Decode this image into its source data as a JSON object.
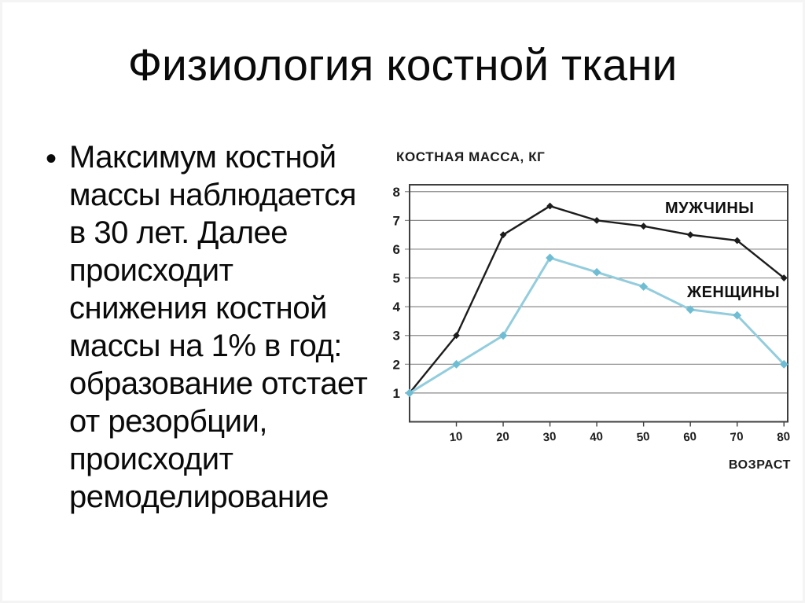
{
  "slide": {
    "title": "Физиология костной ткани",
    "bullet_char": "•",
    "bullet_text": "Максимум костной\nмассы наблюдается\nв 30 лет. Далее\nпроисходит\nснижения костной\nмассы на 1% в год:\nобразование отстает\nот резорбции,\nпроисходит\nремоделирование"
  },
  "chart_data": {
    "type": "line",
    "title": "КОСТНАЯ МАССА, КГ",
    "xlabel": "ВОЗРАСТ",
    "ylabel": "",
    "x": [
      0,
      10,
      20,
      30,
      40,
      50,
      60,
      70,
      80
    ],
    "x_ticks": [
      10,
      20,
      30,
      40,
      50,
      60,
      70,
      80
    ],
    "x_tick_labels": [
      "10",
      "20",
      "30",
      "40",
      "50",
      "60",
      "70",
      "80"
    ],
    "y_ticks": [
      1,
      2,
      3,
      4,
      5,
      6,
      7,
      8
    ],
    "xlim": [
      0,
      80.8
    ],
    "ylim": [
      0,
      8.24
    ],
    "grid": "horizontal",
    "grid_color": "#8a8a8a",
    "frame_color": "#3f3f3f",
    "legend_position": "inline-right",
    "series": [
      {
        "name": "МУЖЧИНЫ",
        "color": "#1c1c1c",
        "marker": "diamond",
        "values": [
          1,
          3,
          6.5,
          7.5,
          7,
          6.8,
          6.5,
          6.3,
          5
        ]
      },
      {
        "name": "ЖЕНЩИНЫ",
        "color": "#93cdDd",
        "marker_color": "#6fbdd3",
        "marker": "diamond",
        "values": [
          1,
          2,
          3,
          5.7,
          5.2,
          4.7,
          3.9,
          3.7,
          2
        ]
      }
    ]
  }
}
